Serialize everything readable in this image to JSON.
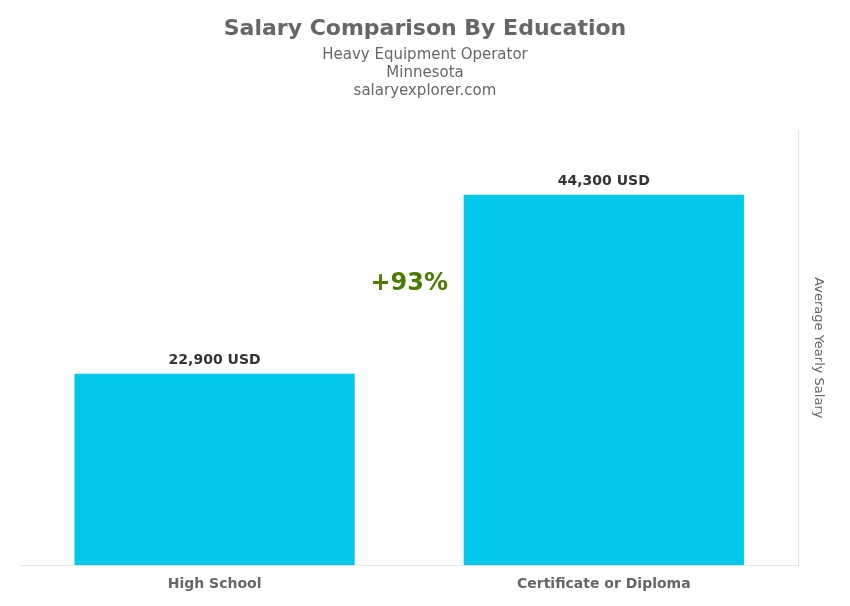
{
  "chart_data": {
    "type": "bar",
    "title": "Salary Comparison By Education",
    "subtitle": "Heavy Equipment Operator",
    "location": "Minnesota",
    "source": "salaryexplorer.com",
    "categories": [
      "High School",
      "Certificate or Diploma"
    ],
    "values": [
      22900,
      44300
    ],
    "value_labels": [
      "22,900 USD",
      "44,300 USD"
    ],
    "data_labels": true,
    "color": "#00C8E8",
    "ylabel": "Average Yearly Salary",
    "ylim": [
      0,
      52000
    ],
    "tick_labels": "x",
    "grid": false,
    "annotations": [
      "+93%"
    ]
  }
}
